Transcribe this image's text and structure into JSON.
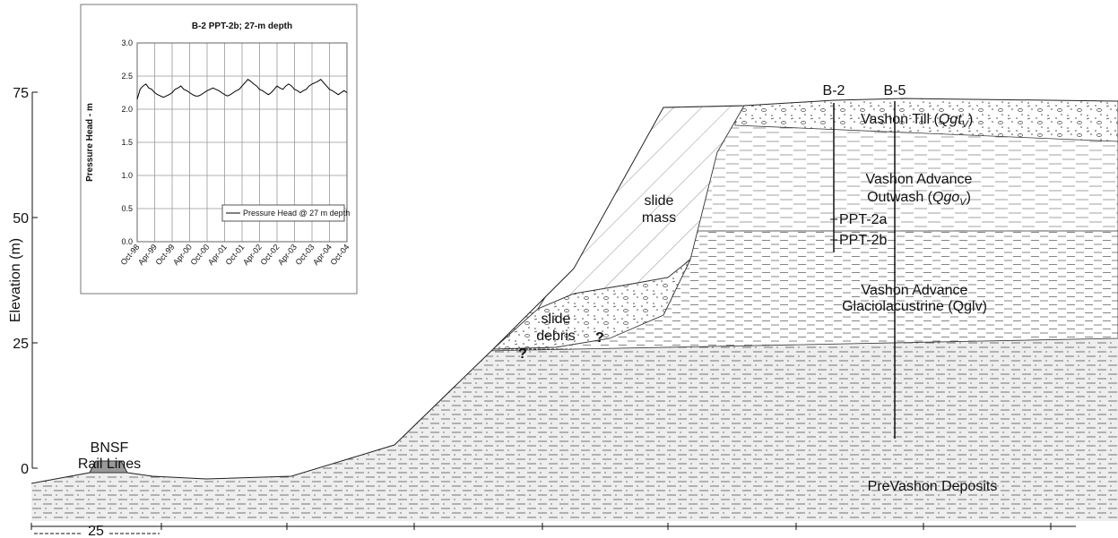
{
  "chart_data": {
    "type": "line",
    "title": "B-2 PPT-2b; 27-m depth",
    "y_label": "Pressure Head - m",
    "x": [
      "Oct-98",
      "Nov-98",
      "Dec-98",
      "Jan-99",
      "Feb-99",
      "Mar-99",
      "Apr-99",
      "May-99",
      "Jun-99",
      "Jul-99",
      "Aug-99",
      "Sep-99",
      "Oct-99",
      "Nov-99",
      "Dec-99",
      "Jan-00",
      "Feb-00",
      "Mar-00",
      "Apr-00",
      "May-00",
      "Jun-00",
      "Jul-00",
      "Aug-00",
      "Sep-00",
      "Oct-00",
      "Nov-00",
      "Dec-00",
      "Jan-01",
      "Feb-01",
      "Mar-01",
      "Apr-01",
      "May-01",
      "Jun-01",
      "Jul-01",
      "Aug-01",
      "Sep-01",
      "Oct-01",
      "Nov-01",
      "Dec-01",
      "Jan-02",
      "Feb-02",
      "Mar-02",
      "Apr-02",
      "May-02",
      "Jun-02",
      "Jul-02",
      "Aug-02",
      "Sep-02",
      "Oct-02",
      "Nov-02",
      "Dec-02",
      "Jan-03",
      "Feb-03",
      "Mar-03",
      "Apr-03",
      "May-03",
      "Jun-03",
      "Jul-03",
      "Aug-03",
      "Sep-03",
      "Oct-03",
      "Nov-03",
      "Dec-03",
      "Jan-04",
      "Feb-04",
      "Mar-04",
      "Apr-04",
      "May-04",
      "Jun-04",
      "Jul-04",
      "Aug-04",
      "Sep-04",
      "Oct-04"
    ],
    "series": [
      {
        "name": "Pressure Head @ 27 m depth",
        "color": "#000000",
        "values": [
          2.15,
          2.3,
          2.35,
          2.38,
          2.32,
          2.3,
          2.25,
          2.22,
          2.2,
          2.18,
          2.2,
          2.22,
          2.25,
          2.3,
          2.32,
          2.35,
          2.3,
          2.28,
          2.25,
          2.22,
          2.2,
          2.2,
          2.22,
          2.25,
          2.28,
          2.3,
          2.32,
          2.3,
          2.28,
          2.25,
          2.22,
          2.2,
          2.22,
          2.25,
          2.28,
          2.3,
          2.35,
          2.4,
          2.45,
          2.42,
          2.38,
          2.35,
          2.3,
          2.28,
          2.25,
          2.22,
          2.25,
          2.3,
          2.35,
          2.32,
          2.3,
          2.35,
          2.38,
          2.35,
          2.3,
          2.28,
          2.25,
          2.28,
          2.3,
          2.35,
          2.38,
          2.4,
          2.42,
          2.45,
          2.4,
          2.35,
          2.3,
          2.28,
          2.25,
          2.22,
          2.25,
          2.28,
          2.25
        ]
      }
    ],
    "xticks": [
      "Oct-98",
      "Apr-99",
      "Oct-99",
      "Apr-00",
      "Oct-00",
      "Apr-01",
      "Oct-01",
      "Apr-02",
      "Oct-02",
      "Apr-03",
      "Oct-03",
      "Apr-04",
      "Oct-04"
    ],
    "ylim": [
      0,
      3
    ],
    "yticks": [
      {
        "value": 0,
        "label": "0.0"
      },
      0.5,
      {
        "value": 1,
        "label": "1.0"
      },
      1.5,
      {
        "value": 2,
        "label": "2.0"
      },
      2.5,
      {
        "value": 3,
        "label": "3.0"
      }
    ],
    "grid": true
  },
  "diagram": {
    "y_label": "Elevation (m)",
    "yticks": [
      0,
      25,
      50,
      75
    ],
    "scale_label": "25",
    "rail": [
      "BNSF",
      "Rail Lines"
    ],
    "till": {
      "text": "Vashon Till (",
      "italic": "Qgt",
      "sub": "V",
      "end": ")"
    },
    "outwash": {
      "line1": "Vashon Advance",
      "text": "Outwash (",
      "italic": "Qgo",
      "sub": "V",
      "end": ")"
    },
    "glacio": [
      "Vashon Advance",
      "Glaciolacustrine (Qglv)"
    ],
    "prevashon": "PreVashon Deposits",
    "slide_mass": [
      "slide",
      "mass"
    ],
    "slide_debris": [
      "slide",
      "debris"
    ],
    "question": "?",
    "boreholes": [
      "B-2",
      "B-5"
    ],
    "ppt": [
      "PPT-2a",
      "PPT-2b"
    ]
  }
}
